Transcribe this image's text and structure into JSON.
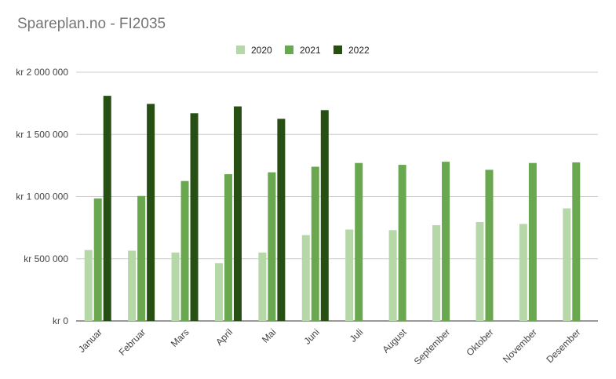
{
  "chart_data": {
    "type": "bar",
    "title": "Spareplan.no - FI2035",
    "xlabel": "",
    "ylabel": "",
    "ylim": [
      0,
      2000000
    ],
    "yticks": [
      {
        "value": 0,
        "label": "kr      0"
      },
      {
        "value": 500000,
        "label": "kr  500 000"
      },
      {
        "value": 1000000,
        "label": "kr 1 000 000"
      },
      {
        "value": 1500000,
        "label": "kr 1 500 000"
      },
      {
        "value": 2000000,
        "label": "kr 2 000 000"
      }
    ],
    "grid": true,
    "legend_position": "top",
    "categories": [
      "Januar",
      "Februar",
      "Mars",
      "April",
      "Mai",
      "Juni",
      "Juli",
      "August",
      "September",
      "Oktober",
      "November",
      "Desember"
    ],
    "series": [
      {
        "name": "2020",
        "color": "#b6d7a8",
        "values": [
          570000,
          565000,
          550000,
          465000,
          550000,
          690000,
          735000,
          730000,
          770000,
          795000,
          780000,
          905000
        ]
      },
      {
        "name": "2021",
        "color": "#6aa84f",
        "values": [
          985000,
          1005000,
          1125000,
          1180000,
          1195000,
          1240000,
          1270000,
          1255000,
          1280000,
          1215000,
          1270000,
          1275000
        ]
      },
      {
        "name": "2022",
        "color": "#274e13",
        "values": [
          1810000,
          1745000,
          1670000,
          1725000,
          1625000,
          1695000,
          null,
          null,
          null,
          null,
          null,
          null
        ]
      }
    ]
  }
}
